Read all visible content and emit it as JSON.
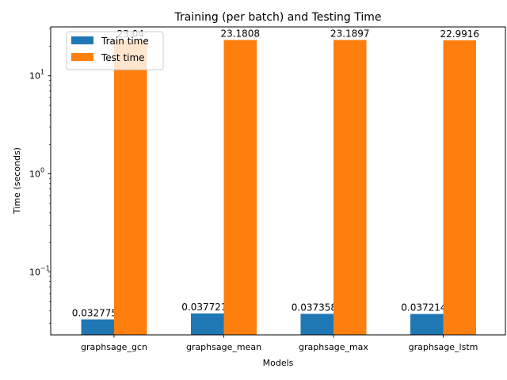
{
  "chart_data": {
    "type": "bar",
    "title": "Training (per batch) and Testing Time",
    "xlabel": "Models",
    "ylabel": "Time (seconds)",
    "yscale": "log",
    "ylim": [
      0.0228,
      31.5
    ],
    "y_ticks": [
      {
        "value": 0.1,
        "base": "10",
        "exp": "−1"
      },
      {
        "value": 1,
        "base": "10",
        "exp": "0"
      },
      {
        "value": 10,
        "base": "10",
        "exp": "1"
      }
    ],
    "categories": [
      "graphsage_gcn",
      "graphsage_mean",
      "graphsage_max",
      "graphsage_lstm"
    ],
    "series": [
      {
        "name": "Train time",
        "color": "#1f77b4",
        "values": [
          0.0327754,
          0.0377219,
          0.0373585,
          0.0372143
        ],
        "labels": [
          "0.0327754",
          "0.0377219",
          "0.0373585",
          "0.0372143"
        ]
      },
      {
        "name": "Test time",
        "color": "#ff7f0e",
        "values": [
          23.04,
          23.1808,
          23.1897,
          22.9916
        ],
        "labels": [
          "23.04",
          "23.1808",
          "23.1897",
          "22.9916"
        ]
      }
    ],
    "legend": "top-left",
    "grid": false
  }
}
